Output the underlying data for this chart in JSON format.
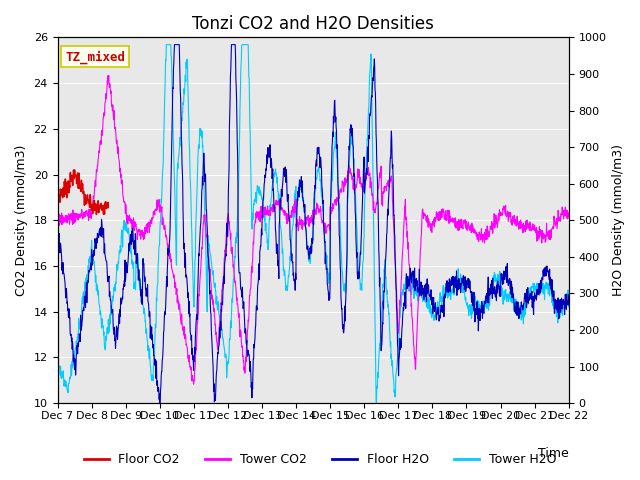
{
  "title": "Tonzi CO2 and H2O Densities",
  "xlabel": "Time",
  "ylabel_left": "CO2 Density (mmol/m3)",
  "ylabel_right": "H2O Density (mmol/m3)",
  "ylim_left": [
    10,
    26
  ],
  "ylim_right": [
    0,
    1000
  ],
  "yticks_left": [
    10,
    12,
    14,
    16,
    18,
    20,
    22,
    24,
    26
  ],
  "yticks_right": [
    0,
    100,
    200,
    300,
    400,
    500,
    600,
    700,
    800,
    900,
    1000
  ],
  "xtick_labels": [
    "Dec 7",
    "Dec 8",
    "Dec 9",
    "Dec 10",
    "Dec 11",
    "Dec 12",
    "Dec 13",
    "Dec 14",
    "Dec 15",
    "Dec 16",
    "Dec 17",
    "Dec 18",
    "Dec 19",
    "Dec 20",
    "Dec 21",
    "Dec 22"
  ],
  "n_points": 1500,
  "colors": {
    "floor_co2": "#dd0000",
    "tower_co2": "#ff00ff",
    "floor_h2o": "#0000bb",
    "tower_h2o": "#00ccff"
  },
  "legend_label": "TZ_mixed",
  "legend_text_color": "#cc0000",
  "legend_box_facecolor": "#fffff0",
  "legend_box_edgecolor": "#cccc00",
  "bg_color": "#e8e8e8",
  "grid_color": "#ffffff",
  "title_fontsize": 12,
  "label_fontsize": 9,
  "tick_fontsize": 8
}
